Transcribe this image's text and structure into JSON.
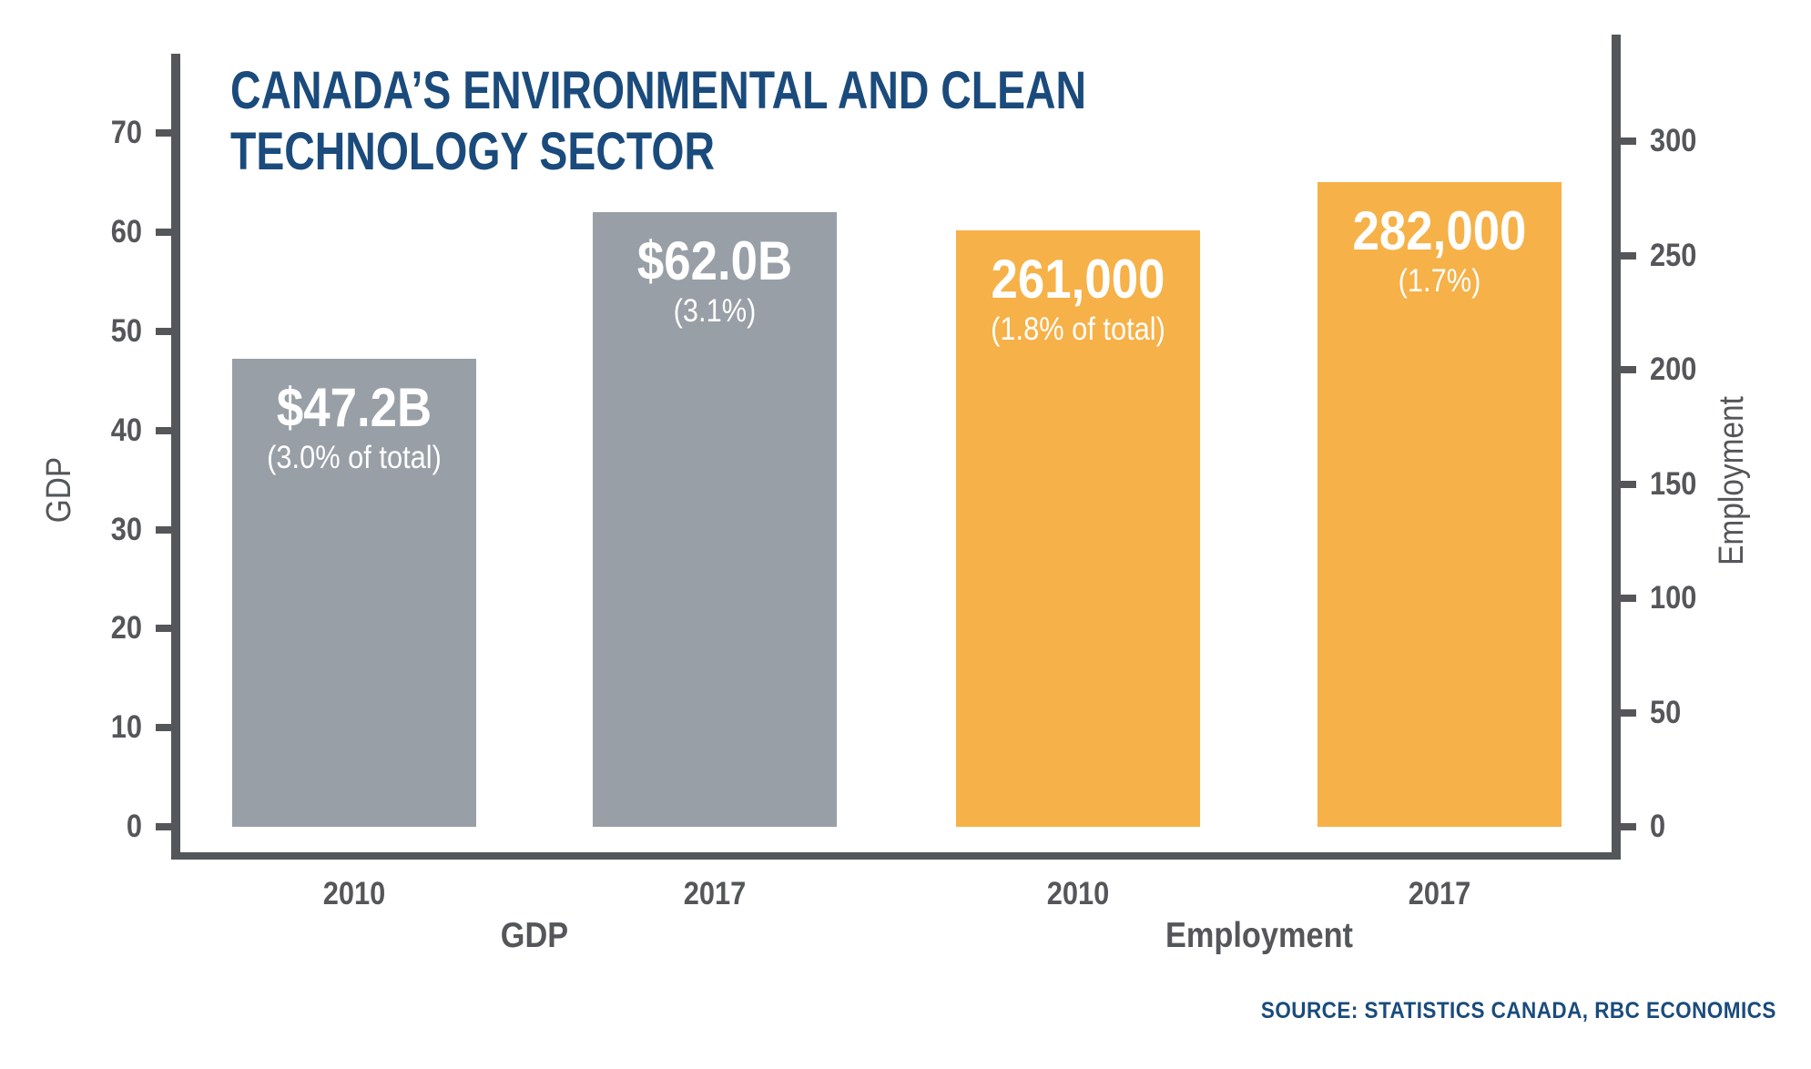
{
  "title": {
    "line1": "CANADA’S ENVIRONMENTAL AND CLEAN",
    "line2": "TECHNOLOGY SECTOR",
    "full": "CANADA’S ENVIRONMENTAL AND CLEAN TECHNOLOGY SECTOR"
  },
  "source": "SOURCE: STATISTICS CANADA, RBC ECONOMICS",
  "colors": {
    "title_navy": "#1A4B7C",
    "axis_gray": "#54565A",
    "bar_gray": "#989FA6",
    "bar_orange": "#F6B148",
    "bar_label_white": "#FFFFFF",
    "background": "#FFFFFF"
  },
  "chart_data": {
    "type": "bar",
    "title": "CANADA’S ENVIRONMENTAL AND CLEAN TECHNOLOGY SECTOR",
    "grid": false,
    "legend": "none",
    "left_axis": {
      "label": "GDP",
      "ticks": [
        0,
        10,
        20,
        30,
        40,
        50,
        60,
        70
      ],
      "range": [
        0,
        78
      ],
      "units": "billions of dollars (as labeled on bars)"
    },
    "right_axis": {
      "label": "Employment",
      "ticks": [
        0,
        50,
        100,
        150,
        200,
        250,
        300
      ],
      "range": [
        0,
        346
      ],
      "units": "thousands (as labeled on bars)"
    },
    "bars": [
      {
        "group": "GDP",
        "category": "2010",
        "axis": "left",
        "value": 47.2,
        "label": "$47.2B",
        "sublabel": "(3.0% of total)",
        "color": "#989FA6"
      },
      {
        "group": "GDP",
        "category": "2017",
        "axis": "left",
        "value": 62.0,
        "label": "$62.0B",
        "sublabel": "(3.1%)",
        "color": "#989FA6"
      },
      {
        "group": "Employment",
        "category": "2010",
        "axis": "right",
        "value": 261,
        "label": "261,000",
        "sublabel": "(1.8% of total)",
        "color": "#F6B148"
      },
      {
        "group": "Employment",
        "category": "2017",
        "axis": "right",
        "value": 282,
        "label": "282,000",
        "sublabel": "(1.7%)",
        "color": "#F6B148"
      }
    ],
    "groups": [
      {
        "label": "GDP"
      },
      {
        "label": "Employment"
      }
    ],
    "source": "SOURCE: STATISTICS CANADA, RBC ECONOMICS"
  }
}
